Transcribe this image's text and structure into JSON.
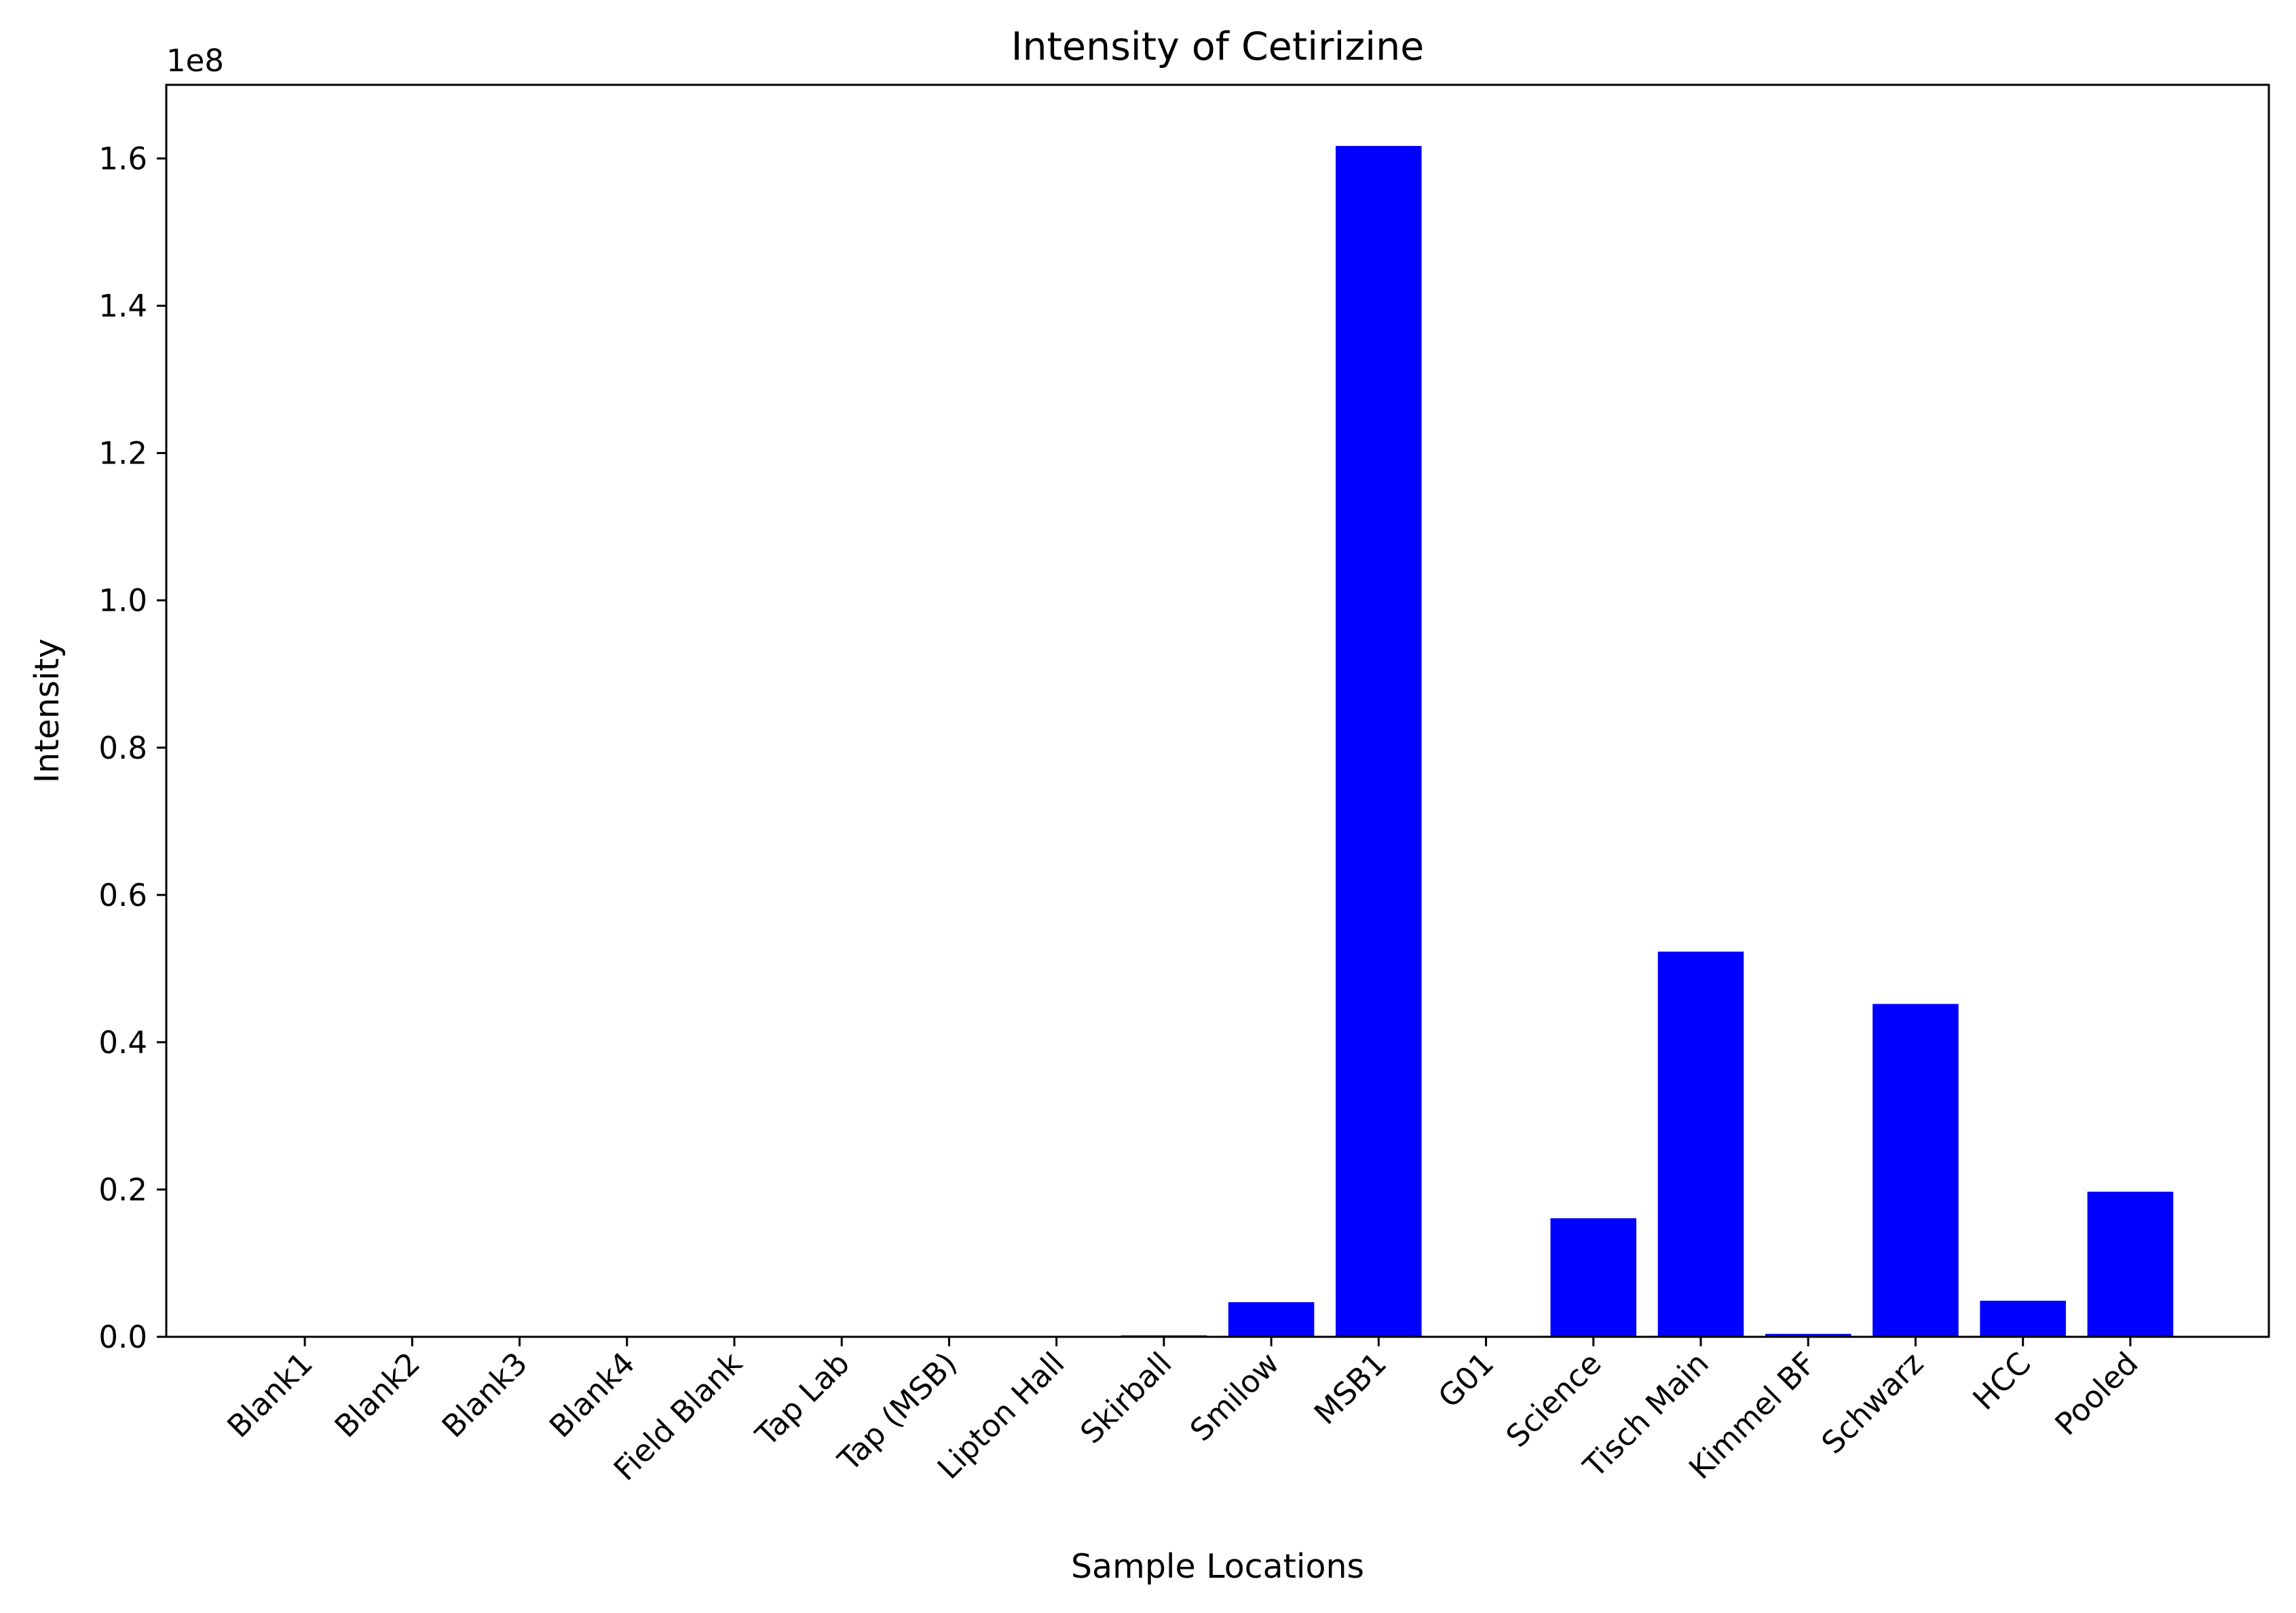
{
  "chart_data": {
    "type": "bar",
    "title": "Intensity of Cetirizine",
    "xlabel": "Sample Locations",
    "ylabel": "Intensity",
    "y_offset_label": "1e8",
    "y_scale": 100000000,
    "ylim": [
      0,
      170000000
    ],
    "yticks": [
      0,
      20000000,
      40000000,
      60000000,
      80000000,
      100000000,
      120000000,
      140000000,
      160000000
    ],
    "ytick_labels": [
      "0.0",
      "0.2",
      "0.4",
      "0.6",
      "0.8",
      "1.0",
      "1.2",
      "1.4",
      "1.6"
    ],
    "grid": false,
    "bar_color": "#0000ff",
    "categories": [
      "Blank1",
      "Blank2",
      "Blank3",
      "Blank4",
      "Field Blank",
      "Tap Lab",
      "Tap (MSB)",
      "Lipton Hall",
      "Skirball",
      "Smilow",
      "MSB1",
      "G01",
      "Science",
      "Tisch Main",
      "Kimmel BF",
      "Schwarz",
      "HCC",
      "Pooled"
    ],
    "values": [
      0,
      0,
      0,
      0,
      0,
      0,
      0,
      0,
      200000,
      4700000,
      161700000,
      0,
      16100000,
      52300000,
      400000,
      45200000,
      4900000,
      19700000
    ]
  }
}
